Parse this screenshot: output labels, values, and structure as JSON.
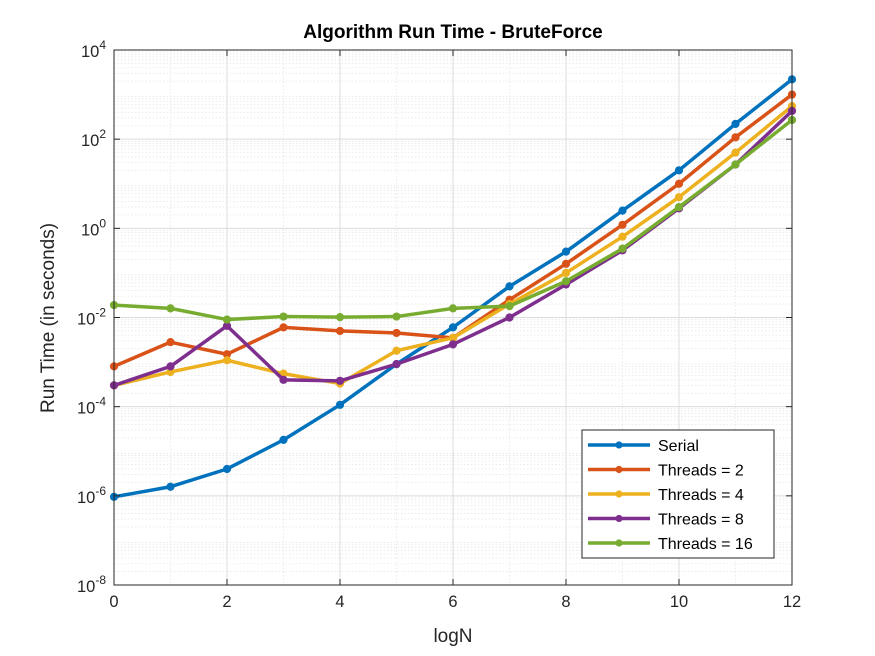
{
  "chart_data": {
    "type": "line",
    "title": "Algorithm Run Time - BruteForce",
    "xlabel": "logN",
    "ylabel": "Run Time (in seconds)",
    "x": [
      0,
      1,
      2,
      3,
      4,
      5,
      6,
      7,
      8,
      9,
      10,
      11,
      12
    ],
    "xlim": [
      0,
      12
    ],
    "ylim": [
      1e-08,
      10000
    ],
    "yscale": "log",
    "x_ticks": [
      0,
      2,
      4,
      6,
      8,
      10,
      12
    ],
    "x_tick_labels": [
      "0",
      "2",
      "4",
      "6",
      "8",
      "10",
      "12"
    ],
    "y_ticks": [
      {
        "value": 1e-08,
        "base": "10",
        "exp": "-8"
      },
      {
        "value": 1e-06,
        "base": "10",
        "exp": "-6"
      },
      {
        "value": 0.0001,
        "base": "10",
        "exp": "-4"
      },
      {
        "value": 0.01,
        "base": "10",
        "exp": "-2"
      },
      {
        "value": 1,
        "base": "10",
        "exp": "0"
      },
      {
        "value": 100,
        "base": "10",
        "exp": "2"
      },
      {
        "value": 10000,
        "base": "10",
        "exp": "4"
      }
    ],
    "grid": true,
    "minor_grid": true,
    "legend_position": "bottom-right",
    "series": [
      {
        "name": "Serial",
        "color": "#0072BD",
        "values": [
          9.5e-07,
          1.6e-06,
          4e-06,
          1.8e-05,
          0.00011,
          0.0009,
          0.006,
          0.05,
          0.3,
          2.5,
          20,
          220,
          2200
        ]
      },
      {
        "name": "Threads = 2",
        "color": "#D95319",
        "values": [
          0.0008,
          0.0028,
          0.0015,
          0.006,
          0.005,
          0.0045,
          0.0035,
          0.025,
          0.16,
          1.2,
          10,
          110,
          1000
        ]
      },
      {
        "name": "Threads = 4",
        "color": "#EDB120",
        "values": [
          0.0003,
          0.0006,
          0.0011,
          0.00055,
          0.00033,
          0.0018,
          0.0035,
          0.02,
          0.1,
          0.65,
          5,
          50,
          550
        ]
      },
      {
        "name": "Threads = 8",
        "color": "#7E2F8E",
        "values": [
          0.0003,
          0.0008,
          0.0065,
          0.0004,
          0.00038,
          0.0009,
          0.0025,
          0.01,
          0.055,
          0.32,
          2.8,
          27,
          430
        ]
      },
      {
        "name": "Threads = 16",
        "color": "#77AC30",
        "values": [
          0.019,
          0.016,
          0.009,
          0.0105,
          0.0102,
          0.0105,
          0.016,
          0.018,
          0.065,
          0.35,
          3,
          27,
          270
        ]
      }
    ]
  }
}
